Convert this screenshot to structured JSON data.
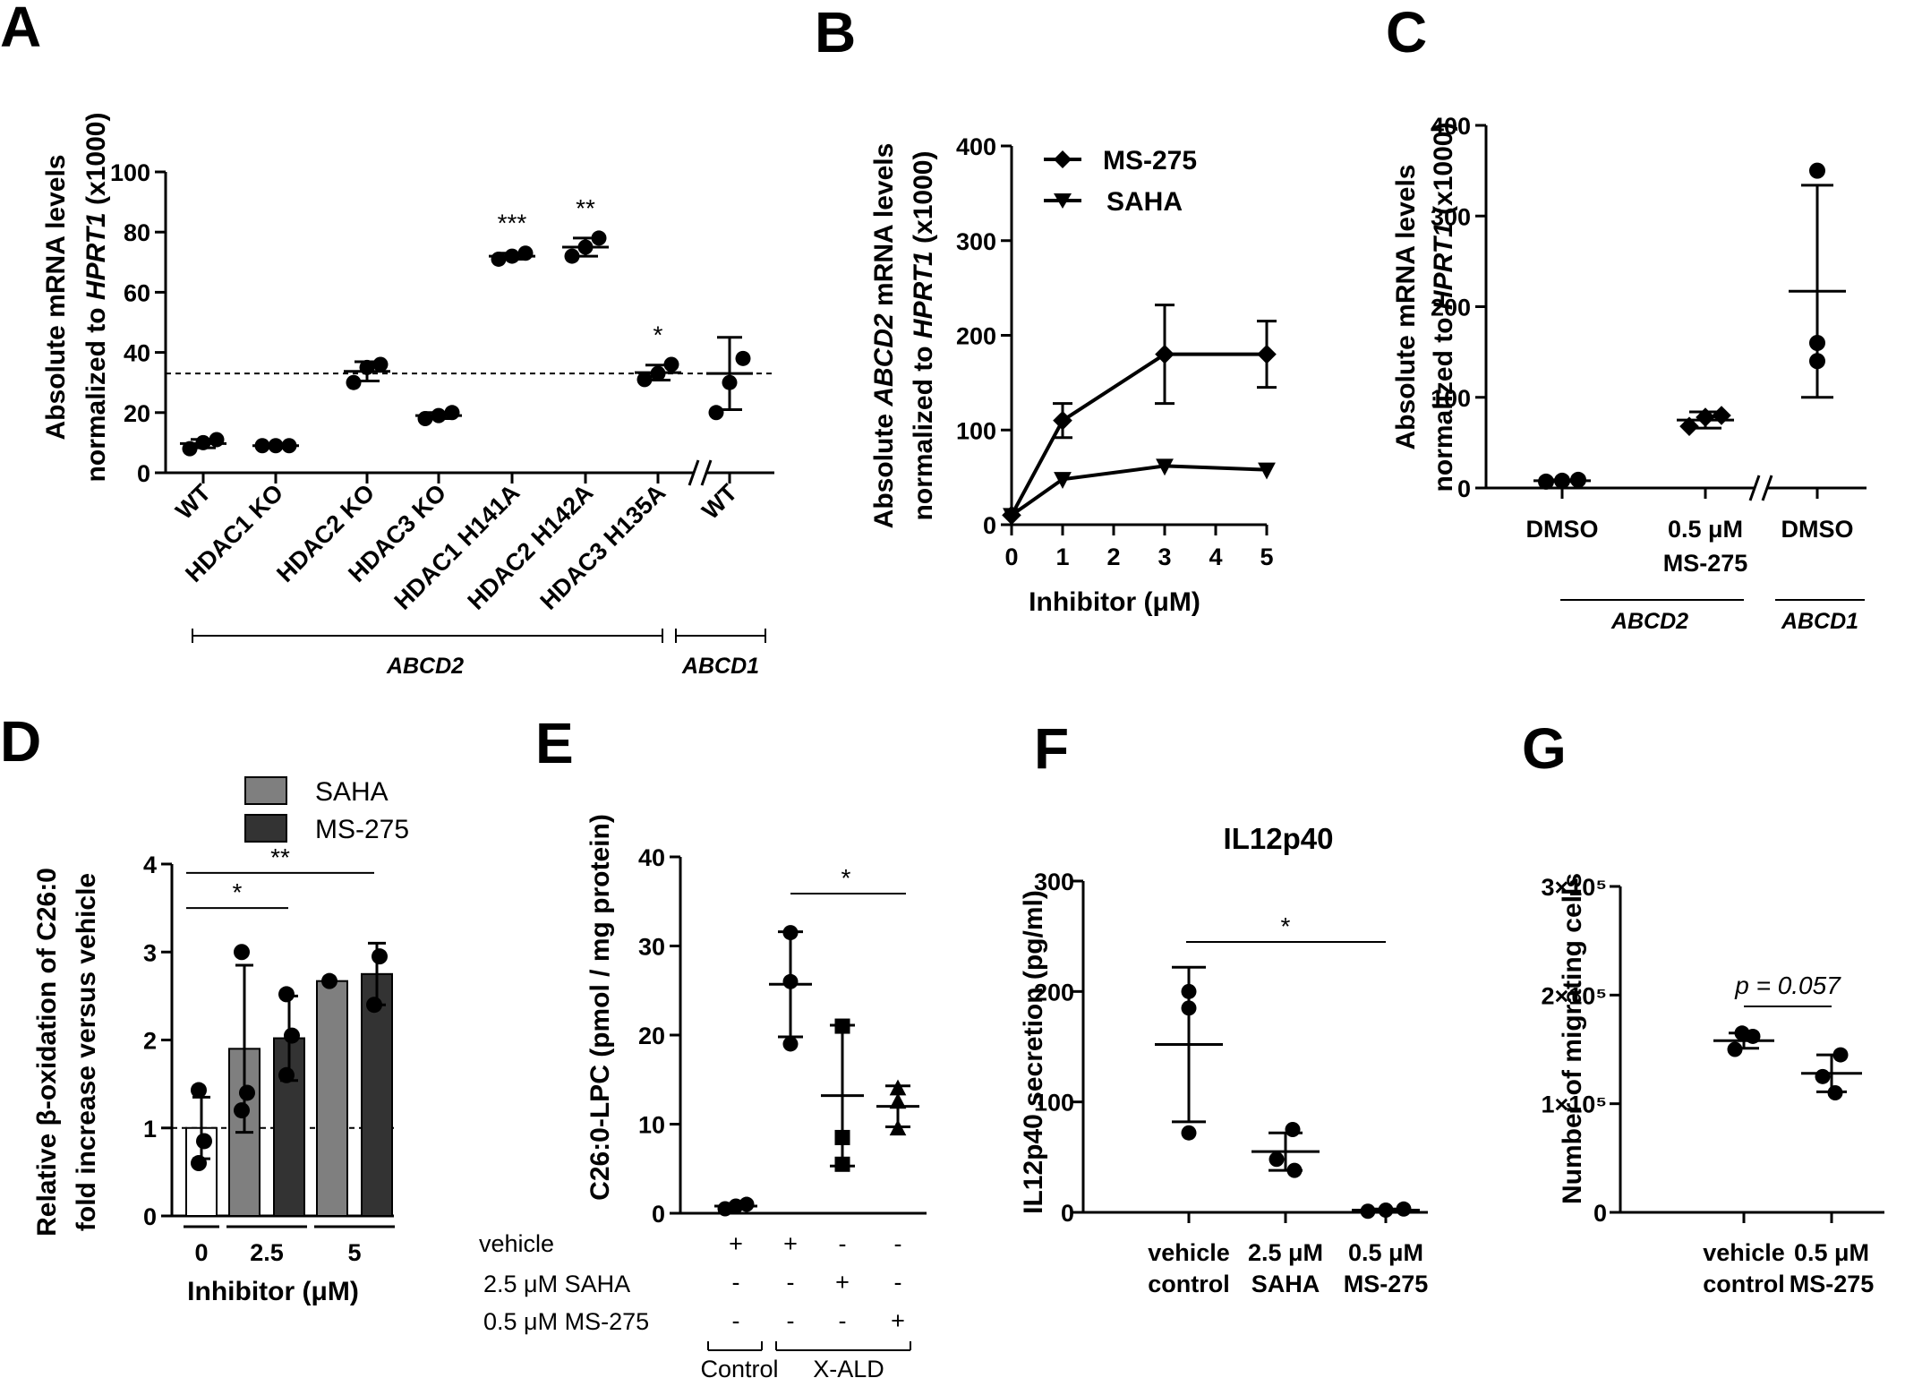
{
  "panels": {
    "A": "A",
    "B": "B",
    "C": "C",
    "D": "D",
    "E": "E",
    "F": "F",
    "G": "G"
  },
  "chart_data": [
    {
      "panel": "A",
      "type": "scatter",
      "ylabel_line1": "Absolute mRNA levels",
      "ylabel_line2_prefix": "normalized to ",
      "ylabel_line2_gene": "HPRT1",
      "ylabel_line2_suffix": " (x1000)",
      "ylim": [
        0,
        100
      ],
      "yticks": [
        "0",
        "20",
        "40",
        "60",
        "80",
        "100"
      ],
      "categories": [
        "WT",
        "HDAC1 KO",
        "HDAC2 KO",
        "HDAC3 KO",
        "HDAC1 H141A",
        "HDAC2 H142A",
        "HDAC3 H135A",
        "WT"
      ],
      "points": [
        [
          8,
          10,
          11
        ],
        [
          9,
          9,
          9
        ],
        [
          30,
          35,
          36
        ],
        [
          18,
          19,
          20
        ],
        [
          71,
          72,
          73
        ],
        [
          72,
          75,
          78
        ],
        [
          31,
          33,
          36
        ],
        [
          20,
          30,
          38
        ]
      ],
      "mean": [
        9.7,
        9,
        33.7,
        19,
        72,
        75,
        33.3,
        33
      ],
      "err": [
        1.4,
        0.3,
        3.2,
        1,
        1,
        3,
        2.5,
        12
      ],
      "significance": [
        "",
        "",
        "",
        "",
        "***",
        "**",
        "*",
        ""
      ],
      "reference_line": 33,
      "groups": [
        {
          "label": "ABCD2",
          "from": 0,
          "to": 6
        },
        {
          "label": "ABCD1",
          "from": 7,
          "to": 7
        }
      ]
    },
    {
      "panel": "B",
      "type": "line",
      "ylabel_line1_prefix": "Absolute ",
      "ylabel_line1_gene": "ABCD2",
      "ylabel_line1_suffix": " mRNA levels",
      "ylabel_line2_prefix": "normalized to ",
      "ylabel_line2_gene": "HPRT1",
      "ylabel_line2_suffix": " (x1000)",
      "xlabel": "Inhibitor (μM)",
      "xlim": [
        0,
        5
      ],
      "ylim": [
        0,
        400
      ],
      "xticks": [
        "0",
        "1",
        "2",
        "3",
        "4",
        "5"
      ],
      "yticks": [
        "0",
        "100",
        "200",
        "300",
        "400"
      ],
      "series": [
        {
          "name": "MS-275",
          "marker": "diamond",
          "x": [
            0,
            1,
            3,
            5
          ],
          "y": [
            10,
            110,
            180,
            180
          ],
          "err": [
            5,
            18,
            52,
            35
          ]
        },
        {
          "name": "SAHA",
          "marker": "triangle-down",
          "x": [
            0,
            1,
            3,
            5
          ],
          "y": [
            10,
            48,
            62,
            58
          ],
          "err": [
            2,
            4,
            4,
            3
          ]
        }
      ]
    },
    {
      "panel": "C",
      "type": "scatter",
      "ylabel_line1": "Absolute mRNA levels",
      "ylabel_line2_prefix": "normalized to ",
      "ylabel_line2_gene": "HPRT1",
      "ylabel_line2_suffix": " (x1000)",
      "ylim": [
        0,
        400
      ],
      "yticks": [
        "0",
        "100",
        "200",
        "300",
        "400"
      ],
      "categories": [
        [
          "DMSO"
        ],
        [
          "0.5 μM",
          "MS-275"
        ],
        [
          "DMSO"
        ]
      ],
      "points": [
        [
          7,
          8,
          9
        ],
        [
          68,
          78,
          80
        ],
        [
          140,
          160,
          350
        ]
      ],
      "markers": [
        "circle",
        "diamond",
        "circle"
      ],
      "mean": [
        8,
        75,
        217
      ],
      "err": [
        1,
        9,
        117
      ],
      "groups": [
        {
          "label": "ABCD2",
          "from": 0,
          "to": 1
        },
        {
          "label": "ABCD1",
          "from": 2,
          "to": 2
        }
      ]
    },
    {
      "panel": "D",
      "type": "bar",
      "ylabel_line1": "Relative β-oxidation of C26:0",
      "ylabel_line2": "fold increase versus vehicle",
      "xlabel": "Inhibitor (μM)",
      "ylim": [
        0,
        4
      ],
      "yticks": [
        "0",
        "1",
        "2",
        "3",
        "4"
      ],
      "categories": [
        "0",
        "2.5",
        "5"
      ],
      "legend": [
        "SAHA",
        "MS-275"
      ],
      "colors": {
        "vehicle": "#ffffff",
        "SAHA": "#7f7f7f",
        "MS-275": "#333333"
      },
      "bars": [
        {
          "group": 0,
          "series": "vehicle",
          "value": 1.0,
          "err": 0.35,
          "points": [
            0.6,
            0.85,
            1.43
          ]
        },
        {
          "group": 1,
          "series": "SAHA",
          "value": 1.9,
          "err": 0.95,
          "points": [
            1.2,
            1.4,
            3.0
          ]
        },
        {
          "group": 1,
          "series": "MS-275",
          "value": 2.02,
          "err": 0.48,
          "points": [
            1.6,
            2.05,
            2.52
          ]
        },
        {
          "group": 2,
          "series": "SAHA",
          "value": 2.67,
          "err": 0,
          "points": [
            2.67
          ]
        },
        {
          "group": 2,
          "series": "MS-275",
          "value": 2.75,
          "err": 0.35,
          "points": [
            2.4,
            2.95
          ]
        }
      ],
      "reference_line": 1,
      "significance": [
        {
          "label": "*",
          "y": 3.5
        },
        {
          "label": "**",
          "y": 3.9
        }
      ]
    },
    {
      "panel": "E",
      "type": "scatter",
      "ylabel": "C26:0-LPC (pmol / mg protein)",
      "ylim": [
        0,
        40
      ],
      "yticks": [
        "0",
        "10",
        "20",
        "30",
        "40"
      ],
      "row_labels": [
        "vehicle",
        "2.5 μM SAHA",
        "0.5 μM MS-275"
      ],
      "conditions": [
        [
          "+",
          "-",
          "-"
        ],
        [
          "+",
          "-",
          "-"
        ],
        [
          "-",
          "+",
          "-"
        ],
        [
          "-",
          "-",
          "+"
        ]
      ],
      "points": [
        [
          0.5,
          0.8,
          1.0
        ],
        [
          19,
          26,
          31.5
        ],
        [
          5.5,
          8.5,
          21
        ],
        [
          9.5,
          12.5,
          14
        ]
      ],
      "markers": [
        "circle",
        "circle",
        "square",
        "triangle-up"
      ],
      "mean": [
        0.8,
        25.7,
        13.2,
        12
      ],
      "err": [
        0.3,
        5.9,
        7.9,
        2.3
      ],
      "groups": [
        {
          "label": "Control",
          "from": 0,
          "to": 0
        },
        {
          "label": "X-ALD",
          "from": 1,
          "to": 3
        }
      ],
      "significance": [
        {
          "label": "*"
        }
      ]
    },
    {
      "panel": "F",
      "type": "scatter",
      "title": "IL12p40",
      "ylabel": "IL12p40 secretion (pg/ml)",
      "ylim": [
        0,
        300
      ],
      "yticks": [
        "0",
        "100",
        "200",
        "300"
      ],
      "categories": [
        [
          "vehicle",
          "control"
        ],
        [
          "2.5 μM",
          "SAHA"
        ],
        [
          "0.5 μM",
          "MS-275"
        ]
      ],
      "points": [
        [
          72,
          185,
          200
        ],
        [
          38,
          48,
          75
        ],
        [
          1,
          2,
          3
        ]
      ],
      "mean": [
        152,
        55,
        2
      ],
      "err": [
        70,
        17,
        1
      ],
      "significance": [
        {
          "label": "*"
        }
      ]
    },
    {
      "panel": "G",
      "type": "scatter",
      "ylabel": "Number of migrating cells",
      "ylim": [
        0,
        300000
      ],
      "yticks": [
        "0",
        "1×10⁵",
        "2×10⁵",
        "3×10⁵"
      ],
      "categories": [
        [
          "vehicle",
          "control"
        ],
        [
          "0.5 μM",
          "MS-275"
        ]
      ],
      "points": [
        [
          150000,
          162000,
          165000
        ],
        [
          110000,
          125000,
          145000
        ]
      ],
      "mean": [
        158000,
        128000
      ],
      "err": [
        7000,
        17000
      ],
      "annotation": "p = 0.057"
    }
  ]
}
